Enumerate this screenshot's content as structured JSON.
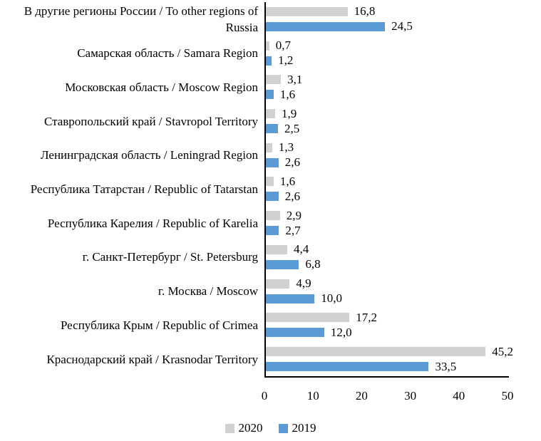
{
  "chart_data": {
    "type": "bar",
    "orientation": "horizontal",
    "grid": false,
    "xlim": [
      0,
      50
    ],
    "x_ticks": [
      "0",
      "10",
      "20",
      "30",
      "40",
      "50"
    ],
    "legend_position": "bottom",
    "colors": {
      "series_2020": "#D1D1D1",
      "series_2019": "#5B9BD5",
      "axis": "#000000"
    },
    "categories": [
      "В другие регионы России / To other regions of Russia",
      "Самарская область / Samara Region",
      "Московская область / Moscow Region",
      "Ставропольский край / Stavropol Territory",
      "Ленинградская область / Leningrad Region",
      "Республика Татарстан / Republic of Tatarstan",
      "Республика Карелия / Republic of Karelia",
      "г. Санкт-Петербург / St. Petersburg",
      "г. Москва / Moscow",
      "Республика Крым / Republic of Crimea",
      "Краснодарский край / Krasnodar Territory"
    ],
    "series": [
      {
        "name": "2020",
        "color": "#D1D1D1",
        "values": [
          16.8,
          0.7,
          3.1,
          1.9,
          1.3,
          1.6,
          2.9,
          4.4,
          4.9,
          17.2,
          45.2
        ],
        "labels": [
          "16,8",
          "0,7",
          "3,1",
          "1,9",
          "1,3",
          "1,6",
          "2,9",
          "4,4",
          "4,9",
          "17,2",
          "45,2"
        ]
      },
      {
        "name": "2019",
        "color": "#5B9BD5",
        "values": [
          24.5,
          1.2,
          1.6,
          2.5,
          2.6,
          2.6,
          2.7,
          6.8,
          10.0,
          12.0,
          33.5
        ],
        "labels": [
          "24,5",
          "1,2",
          "1,6",
          "2,5",
          "2,6",
          "2,6",
          "2,7",
          "6,8",
          "10,0",
          "12,0",
          "33,5"
        ]
      }
    ]
  }
}
